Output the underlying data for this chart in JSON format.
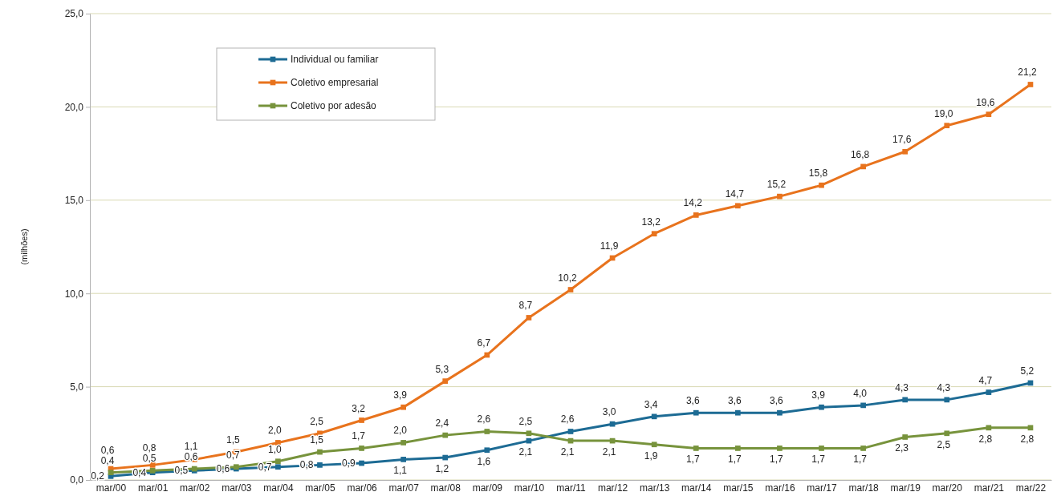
{
  "chart_data": {
    "type": "line",
    "ylabel": "(milhões)",
    "categories": [
      "mar/00",
      "mar/01",
      "mar/02",
      "mar/03",
      "mar/04",
      "mar/05",
      "mar/06",
      "mar/07",
      "mar/08",
      "mar/09",
      "mar/10",
      "mar/11",
      "mar/12",
      "mar/13",
      "mar/14",
      "mar/15",
      "mar/16",
      "mar/17",
      "mar/18",
      "mar/19",
      "mar/20",
      "mar/21",
      "mar/22"
    ],
    "series": [
      {
        "name": "Individual ou familiar",
        "color": "#1d6b94",
        "values": [
          0.2,
          0.4,
          0.5,
          0.6,
          0.7,
          0.8,
          0.9,
          1.1,
          1.2,
          1.6,
          2.1,
          2.6,
          3.0,
          3.4,
          3.6,
          3.6,
          3.6,
          3.9,
          4.0,
          4.3,
          4.3,
          4.7,
          5.2
        ],
        "value_labels": [
          "0,2",
          "0,4",
          "0,5",
          "0,6",
          "0,7",
          "0,8",
          "0,9",
          "1,1",
          "1,2",
          "1,6",
          "2,1",
          "2,6",
          "3,0",
          "3,4",
          "3,6",
          "3,6",
          "3,6",
          "3,9",
          "4,0",
          "4,3",
          "4,3",
          "4,7",
          "5,2"
        ]
      },
      {
        "name": "Coletivo empresarial",
        "color": "#e8731d",
        "values": [
          0.6,
          0.8,
          1.1,
          1.5,
          2.0,
          2.5,
          3.2,
          3.9,
          5.3,
          6.7,
          8.7,
          10.2,
          11.9,
          13.2,
          14.2,
          14.7,
          15.2,
          15.8,
          16.8,
          17.6,
          19.0,
          19.6,
          21.2
        ],
        "value_labels": [
          "0,6",
          "0,8",
          "1,1",
          "1,5",
          "2,0",
          "2,5",
          "3,2",
          "3,9",
          "5,3",
          "6,7",
          "8,7",
          "10,2",
          "11,9",
          "13,2",
          "14,2",
          "14,7",
          "15,2",
          "15,8",
          "16,8",
          "17,6",
          "19,0",
          "19,6",
          "21,2"
        ]
      },
      {
        "name": "Coletivo por adesão",
        "color": "#77933c",
        "values": [
          0.4,
          0.5,
          0.6,
          0.7,
          1.0,
          1.5,
          1.7,
          2.0,
          2.4,
          2.6,
          2.5,
          2.1,
          2.1,
          1.9,
          1.7,
          1.7,
          1.7,
          1.7,
          1.7,
          2.3,
          2.5,
          2.8,
          2.8
        ],
        "value_labels": [
          "0,4",
          "0,5",
          "0,6",
          "0,7",
          "1,0",
          "1,5",
          "1,7",
          "2,0",
          "2,4",
          "2,6",
          "2,5",
          "2,1",
          "2,1",
          "1,9",
          "1,7",
          "1,7",
          "1,7",
          "1,7",
          "1,7",
          "2,3",
          "2,5",
          "2,8",
          "2,8"
        ]
      }
    ],
    "ylim": [
      0,
      25
    ],
    "yticks": [
      {
        "value": 0,
        "label": "0,0"
      },
      {
        "value": 5,
        "label": "5,0"
      },
      {
        "value": 10,
        "label": "10,0"
      },
      {
        "value": 15,
        "label": "15,0"
      },
      {
        "value": 20,
        "label": "20,0"
      },
      {
        "value": 25,
        "label": "25,0"
      }
    ],
    "grid": "y",
    "legend": "top left",
    "marker": "square",
    "line_style": "solid"
  }
}
